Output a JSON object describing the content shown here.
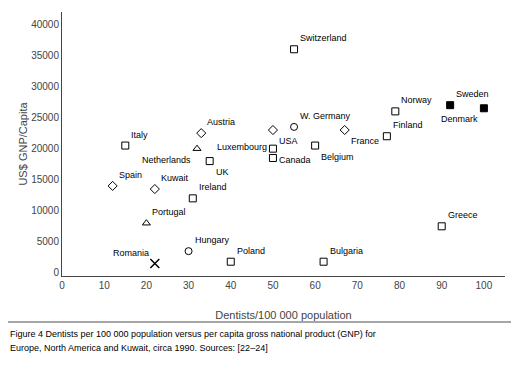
{
  "chart_data": {
    "type": "scatter",
    "xlabel": "Dentists/100 000 population",
    "ylabel": "US$ GNP/Capita",
    "caption": [
      "Figure 4 Dentists per 100 000 population versus per capita gross national product (GNP) for",
      "Europe, North America and Kuwait, circa 1990. Sources: [22–24]"
    ],
    "color": "#000000",
    "grid": false,
    "xlim": [
      0,
      105
    ],
    "ylim": [
      -500,
      42000
    ],
    "xticks": [
      0,
      10,
      20,
      30,
      40,
      50,
      60,
      70,
      80,
      90,
      100
    ],
    "yticks": [
      0,
      5000,
      10000,
      15000,
      20000,
      25000,
      30000,
      35000,
      40000
    ],
    "series": [
      {
        "name": "Switzerland",
        "x": [
          55
        ],
        "values": [
          36000
        ],
        "marker": "square-open"
      },
      {
        "name": "Sweden",
        "x": [
          92
        ],
        "values": [
          27000
        ],
        "marker": "square"
      },
      {
        "name": "Denmark",
        "x": [
          100
        ],
        "values": [
          26500
        ],
        "marker": "square"
      },
      {
        "name": "Norway",
        "x": [
          79
        ],
        "values": [
          26000
        ],
        "marker": "square-open"
      },
      {
        "name": "W. Germany",
        "x": [
          55
        ],
        "values": [
          23500
        ],
        "marker": "circle-open"
      },
      {
        "name": "France",
        "x": [
          67
        ],
        "values": [
          23000
        ],
        "marker": "diamond-open"
      },
      {
        "name": "USA",
        "x": [
          50
        ],
        "values": [
          23000
        ],
        "marker": "diamond-open"
      },
      {
        "name": "Finland",
        "x": [
          77
        ],
        "values": [
          22000
        ],
        "marker": "square-open"
      },
      {
        "name": "Belgium",
        "x": [
          60
        ],
        "values": [
          20500
        ],
        "marker": "square-open"
      },
      {
        "name": "Italy",
        "x": [
          15
        ],
        "values": [
          20500
        ],
        "marker": "square-open"
      },
      {
        "name": "Austria",
        "x": [
          33
        ],
        "values": [
          22500
        ],
        "marker": "diamond-open"
      },
      {
        "name": "Netherlands",
        "x": [
          32
        ],
        "values": [
          20000
        ],
        "marker": "triangle-up-open"
      },
      {
        "name": "Canada",
        "x": [
          50
        ],
        "values": [
          20000
        ],
        "marker": "square-open"
      },
      {
        "name": "Luxembourg",
        "x": [
          50
        ],
        "values": [
          18500
        ],
        "marker": "square-open"
      },
      {
        "name": "UK",
        "x": [
          35
        ],
        "values": [
          18000
        ],
        "marker": "square-open"
      },
      {
        "name": "Kuwait",
        "x": [
          22
        ],
        "values": [
          13500
        ],
        "marker": "diamond-open"
      },
      {
        "name": "Spain",
        "x": [
          12
        ],
        "values": [
          14000
        ],
        "marker": "diamond-open"
      },
      {
        "name": "Ireland",
        "x": [
          31
        ],
        "values": [
          12000
        ],
        "marker": "square-open"
      },
      {
        "name": "Portugal",
        "x": [
          20
        ],
        "values": [
          8000
        ],
        "marker": "triangle-up-open"
      },
      {
        "name": "Greece",
        "x": [
          90
        ],
        "values": [
          7500
        ],
        "marker": "square-open"
      },
      {
        "name": "Hungary",
        "x": [
          30
        ],
        "values": [
          3500
        ],
        "marker": "circle-open"
      },
      {
        "name": "Poland",
        "x": [
          40
        ],
        "values": [
          1800
        ],
        "marker": "square-open"
      },
      {
        "name": "Romania",
        "x": [
          22
        ],
        "values": [
          1500
        ],
        "marker": "x"
      },
      {
        "name": "Bulgaria",
        "x": [
          62
        ],
        "values": [
          1800
        ],
        "marker": "square-open"
      }
    ]
  }
}
